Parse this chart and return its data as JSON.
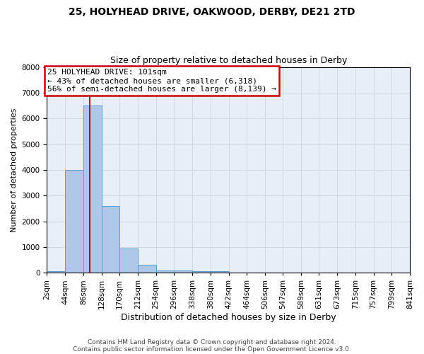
{
  "title": "25, HOLYHEAD DRIVE, OAKWOOD, DERBY, DE21 2TD",
  "subtitle": "Size of property relative to detached houses in Derby",
  "xlabel": "Distribution of detached houses by size in Derby",
  "ylabel": "Number of detached properties",
  "footer_line1": "Contains HM Land Registry data © Crown copyright and database right 2024.",
  "footer_line2": "Contains public sector information licensed under the Open Government Licence v3.0.",
  "bin_edges": [
    2,
    44,
    86,
    128,
    170,
    212,
    254,
    296,
    338,
    380,
    422,
    464,
    506,
    547,
    589,
    631,
    673,
    715,
    757,
    799,
    841
  ],
  "bin_labels": [
    "2sqm",
    "44sqm",
    "86sqm",
    "128sqm",
    "170sqm",
    "212sqm",
    "254sqm",
    "296sqm",
    "338sqm",
    "380sqm",
    "422sqm",
    "464sqm",
    "506sqm",
    "547sqm",
    "589sqm",
    "631sqm",
    "673sqm",
    "715sqm",
    "757sqm",
    "799sqm",
    "841sqm"
  ],
  "bar_heights": [
    50,
    4000,
    6500,
    2600,
    950,
    300,
    100,
    80,
    70,
    50,
    0,
    0,
    0,
    0,
    0,
    0,
    0,
    0,
    0,
    0
  ],
  "bar_color": "#aec6e8",
  "bar_edge_color": "#5a9fd4",
  "property_size": 101,
  "vline_color": "#cc0000",
  "annotation_text": "25 HOLYHEAD DRIVE: 101sqm\n← 43% of detached houses are smaller (6,318)\n56% of semi-detached houses are larger (8,139) →",
  "annotation_box_color": "#cc0000",
  "annotation_bg": "#ffffff",
  "ylim": [
    0,
    8000
  ],
  "yticks": [
    0,
    1000,
    2000,
    3000,
    4000,
    5000,
    6000,
    7000,
    8000
  ],
  "grid_color": "#d0d8e8",
  "background_color": "#e8eef8",
  "title_fontsize": 10,
  "subtitle_fontsize": 9,
  "xlabel_fontsize": 9,
  "ylabel_fontsize": 8,
  "tick_fontsize": 7.5,
  "footer_fontsize": 6.5,
  "annotation_fontsize": 8
}
